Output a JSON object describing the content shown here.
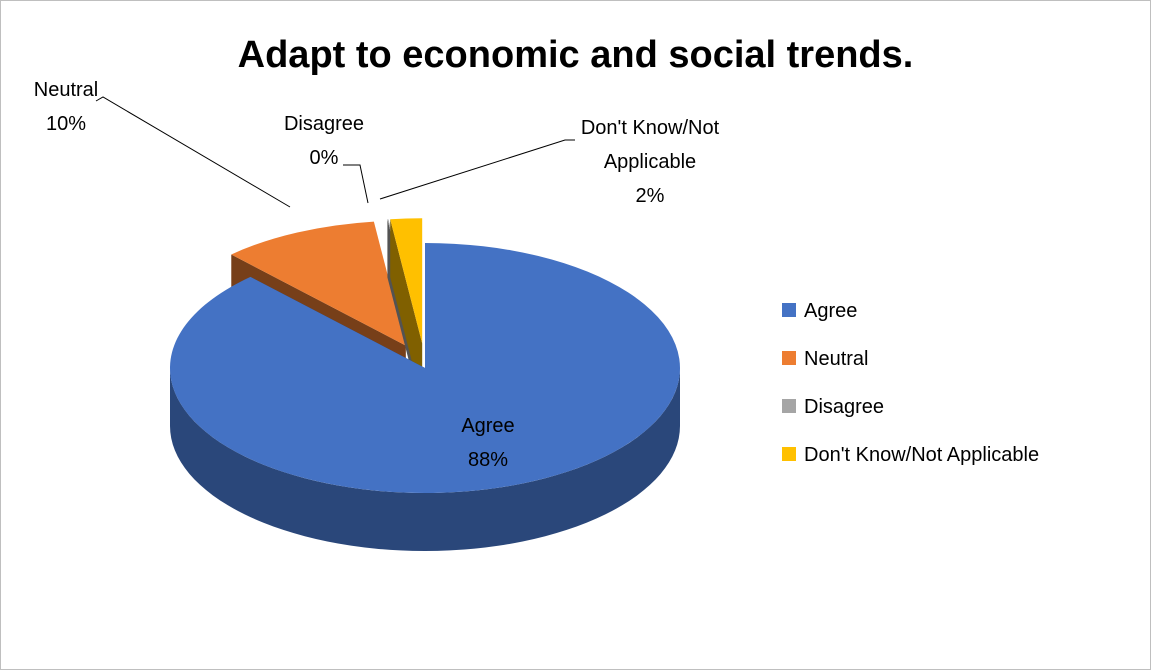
{
  "chart_data": {
    "type": "pie",
    "title": "Adapt to economic and social trends.",
    "categories": [
      "Agree",
      "Neutral",
      "Disagree",
      "Don't Know/Not Applicable"
    ],
    "values": [
      88,
      10,
      0,
      2
    ],
    "data_labels": [
      {
        "name": "Agree",
        "value": "88%"
      },
      {
        "name": "Neutral",
        "value": "10%"
      },
      {
        "name": "Disagree",
        "value": "0%"
      },
      {
        "name": "Don't Know/Not Applicable",
        "value": "2%"
      }
    ],
    "colors": [
      "#4472C4",
      "#ED7D31",
      "#A5A5A5",
      "#FFC000"
    ],
    "legend_position": "right",
    "style": "3d-exploded"
  }
}
